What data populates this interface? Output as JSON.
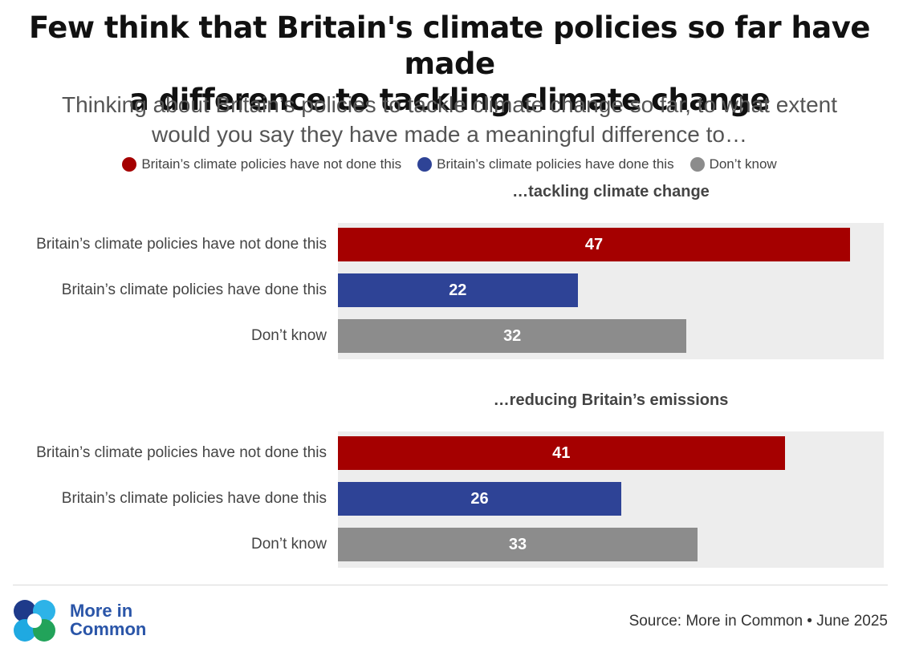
{
  "title_line1": "Few think that Britain's climate policies so far have made",
  "title_line2": "a difference to tackling climate change",
  "subtitle_line1": "Thinking about Britain’s policies to tackle climate change so far, to what extent",
  "subtitle_line2": "would you say they have made a meaningful difference to…",
  "legend": [
    {
      "label": "Britain’s climate policies have not done this",
      "color": "#a50000"
    },
    {
      "label": "Britain’s climate policies have done this",
      "color": "#2e4396"
    },
    {
      "label": "Don’t know",
      "color": "#8c8c8c"
    }
  ],
  "chart_data": {
    "type": "bar",
    "orientation": "horizontal",
    "title": "Few think that Britain's climate policies so far have made a difference to tackling climate change",
    "xlim": [
      0,
      50
    ],
    "panels": [
      {
        "title": "…tackling climate change",
        "categories": [
          "Britain’s climate policies have not done this",
          "Britain’s climate policies have done this",
          "Don’t know"
        ],
        "values": [
          47,
          22,
          32
        ],
        "colors": [
          "#a50000",
          "#2e4396",
          "#8c8c8c"
        ]
      },
      {
        "title": "…reducing Britain’s emissions",
        "categories": [
          "Britain’s climate policies have not done this",
          "Britain’s climate policies have done this",
          "Don’t know"
        ],
        "values": [
          41,
          26,
          33
        ],
        "colors": [
          "#a50000",
          "#2e4396",
          "#8c8c8c"
        ]
      }
    ]
  },
  "logo": {
    "line1": "More in",
    "line2": "Common",
    "color": "#2a55a8"
  },
  "source": "Source: More in Common • June 2025"
}
